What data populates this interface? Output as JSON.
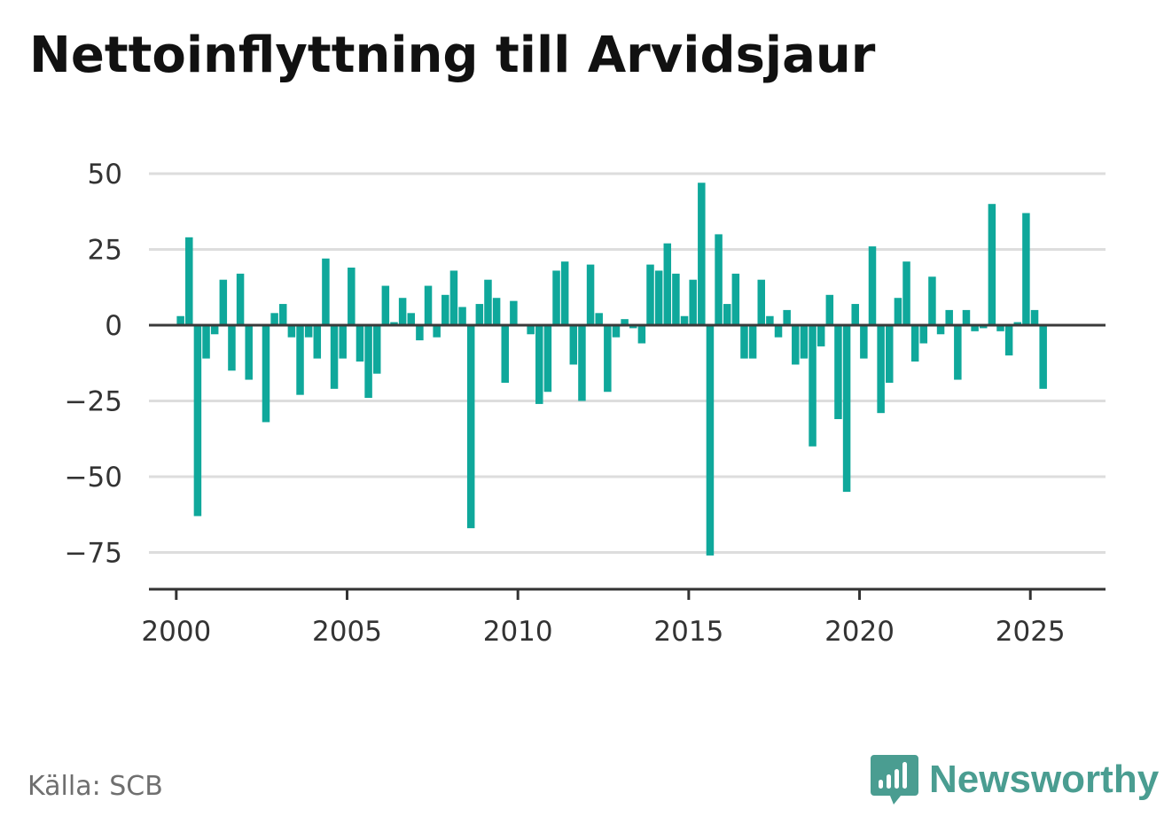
{
  "title": "Nettoinflyttning till Arvidsjaur",
  "source": "Källa: SCB",
  "brand": {
    "name": "Newsworthy",
    "icon": "newsworthy-logo-icon",
    "color": "#4a9d91"
  },
  "chart_data": {
    "type": "bar",
    "title": "Nettoinflyttning till Arvidsjaur",
    "xlabel": "",
    "ylabel": "",
    "ylim": [
      -90,
      58
    ],
    "yticks": [
      50,
      25,
      0,
      -25,
      -50,
      -75
    ],
    "ytick_labels": [
      "50",
      "25",
      "0",
      "−25",
      "−50",
      "−75"
    ],
    "xticks": [
      2000,
      2005,
      2010,
      2015,
      2020,
      2025
    ],
    "xtick_labels": [
      "2000",
      "2005",
      "2010",
      "2015",
      "2020",
      "2025"
    ],
    "xlim": [
      1999.2,
      2027.2
    ],
    "grid": true,
    "bar_color": "#0fa89b",
    "frequency": "quarterly",
    "x": [
      2000.125,
      2000.375,
      2000.625,
      2000.875,
      2001.125,
      2001.375,
      2001.625,
      2001.875,
      2002.125,
      2002.375,
      2002.625,
      2002.875,
      2003.125,
      2003.375,
      2003.625,
      2003.875,
      2004.125,
      2004.375,
      2004.625,
      2004.875,
      2005.125,
      2005.375,
      2005.625,
      2005.875,
      2006.125,
      2006.375,
      2006.625,
      2006.875,
      2007.125,
      2007.375,
      2007.625,
      2007.875,
      2008.125,
      2008.375,
      2008.625,
      2008.875,
      2009.125,
      2009.375,
      2009.625,
      2009.875,
      2010.125,
      2010.375,
      2010.625,
      2010.875,
      2011.125,
      2011.375,
      2011.625,
      2011.875,
      2012.125,
      2012.375,
      2012.625,
      2012.875,
      2013.125,
      2013.375,
      2013.625,
      2013.875,
      2014.125,
      2014.375,
      2014.625,
      2014.875,
      2015.125,
      2015.375,
      2015.625,
      2015.875,
      2016.125,
      2016.375,
      2016.625,
      2016.875,
      2017.125,
      2017.375,
      2017.625,
      2017.875,
      2018.125,
      2018.375,
      2018.625,
      2018.875,
      2019.125,
      2019.375,
      2019.625,
      2019.875,
      2020.125,
      2020.375,
      2020.625,
      2020.875,
      2021.125,
      2021.375,
      2021.625,
      2021.875,
      2022.125,
      2022.375,
      2022.625,
      2022.875,
      2023.125,
      2023.375,
      2023.625,
      2023.875,
      2024.125,
      2024.375,
      2024.625,
      2024.875,
      2025.125,
      2025.375
    ],
    "values": [
      3,
      29,
      -63,
      -11,
      -3,
      15,
      -15,
      17,
      -18,
      0,
      -32,
      4,
      7,
      -4,
      -23,
      -4,
      -11,
      22,
      -21,
      -11,
      19,
      -12,
      -24,
      -16,
      13,
      1,
      9,
      4,
      -5,
      13,
      -4,
      10,
      18,
      6,
      -67,
      7,
      15,
      9,
      -19,
      8,
      0,
      -3,
      -26,
      -22,
      18,
      21,
      -13,
      -25,
      20,
      4,
      -22,
      -4,
      2,
      -1,
      -6,
      20,
      18,
      27,
      17,
      3,
      15,
      47,
      -76,
      30,
      7,
      17,
      -11,
      -11,
      15,
      3,
      -4,
      5,
      -13,
      -11,
      -40,
      -7,
      10,
      -31,
      -55,
      7,
      -11,
      26,
      -29,
      -19,
      9,
      21,
      -12,
      -6,
      16,
      -3,
      5,
      -18,
      5,
      -2,
      -1,
      40,
      -2,
      -10,
      1,
      37,
      5,
      -21
    ]
  }
}
